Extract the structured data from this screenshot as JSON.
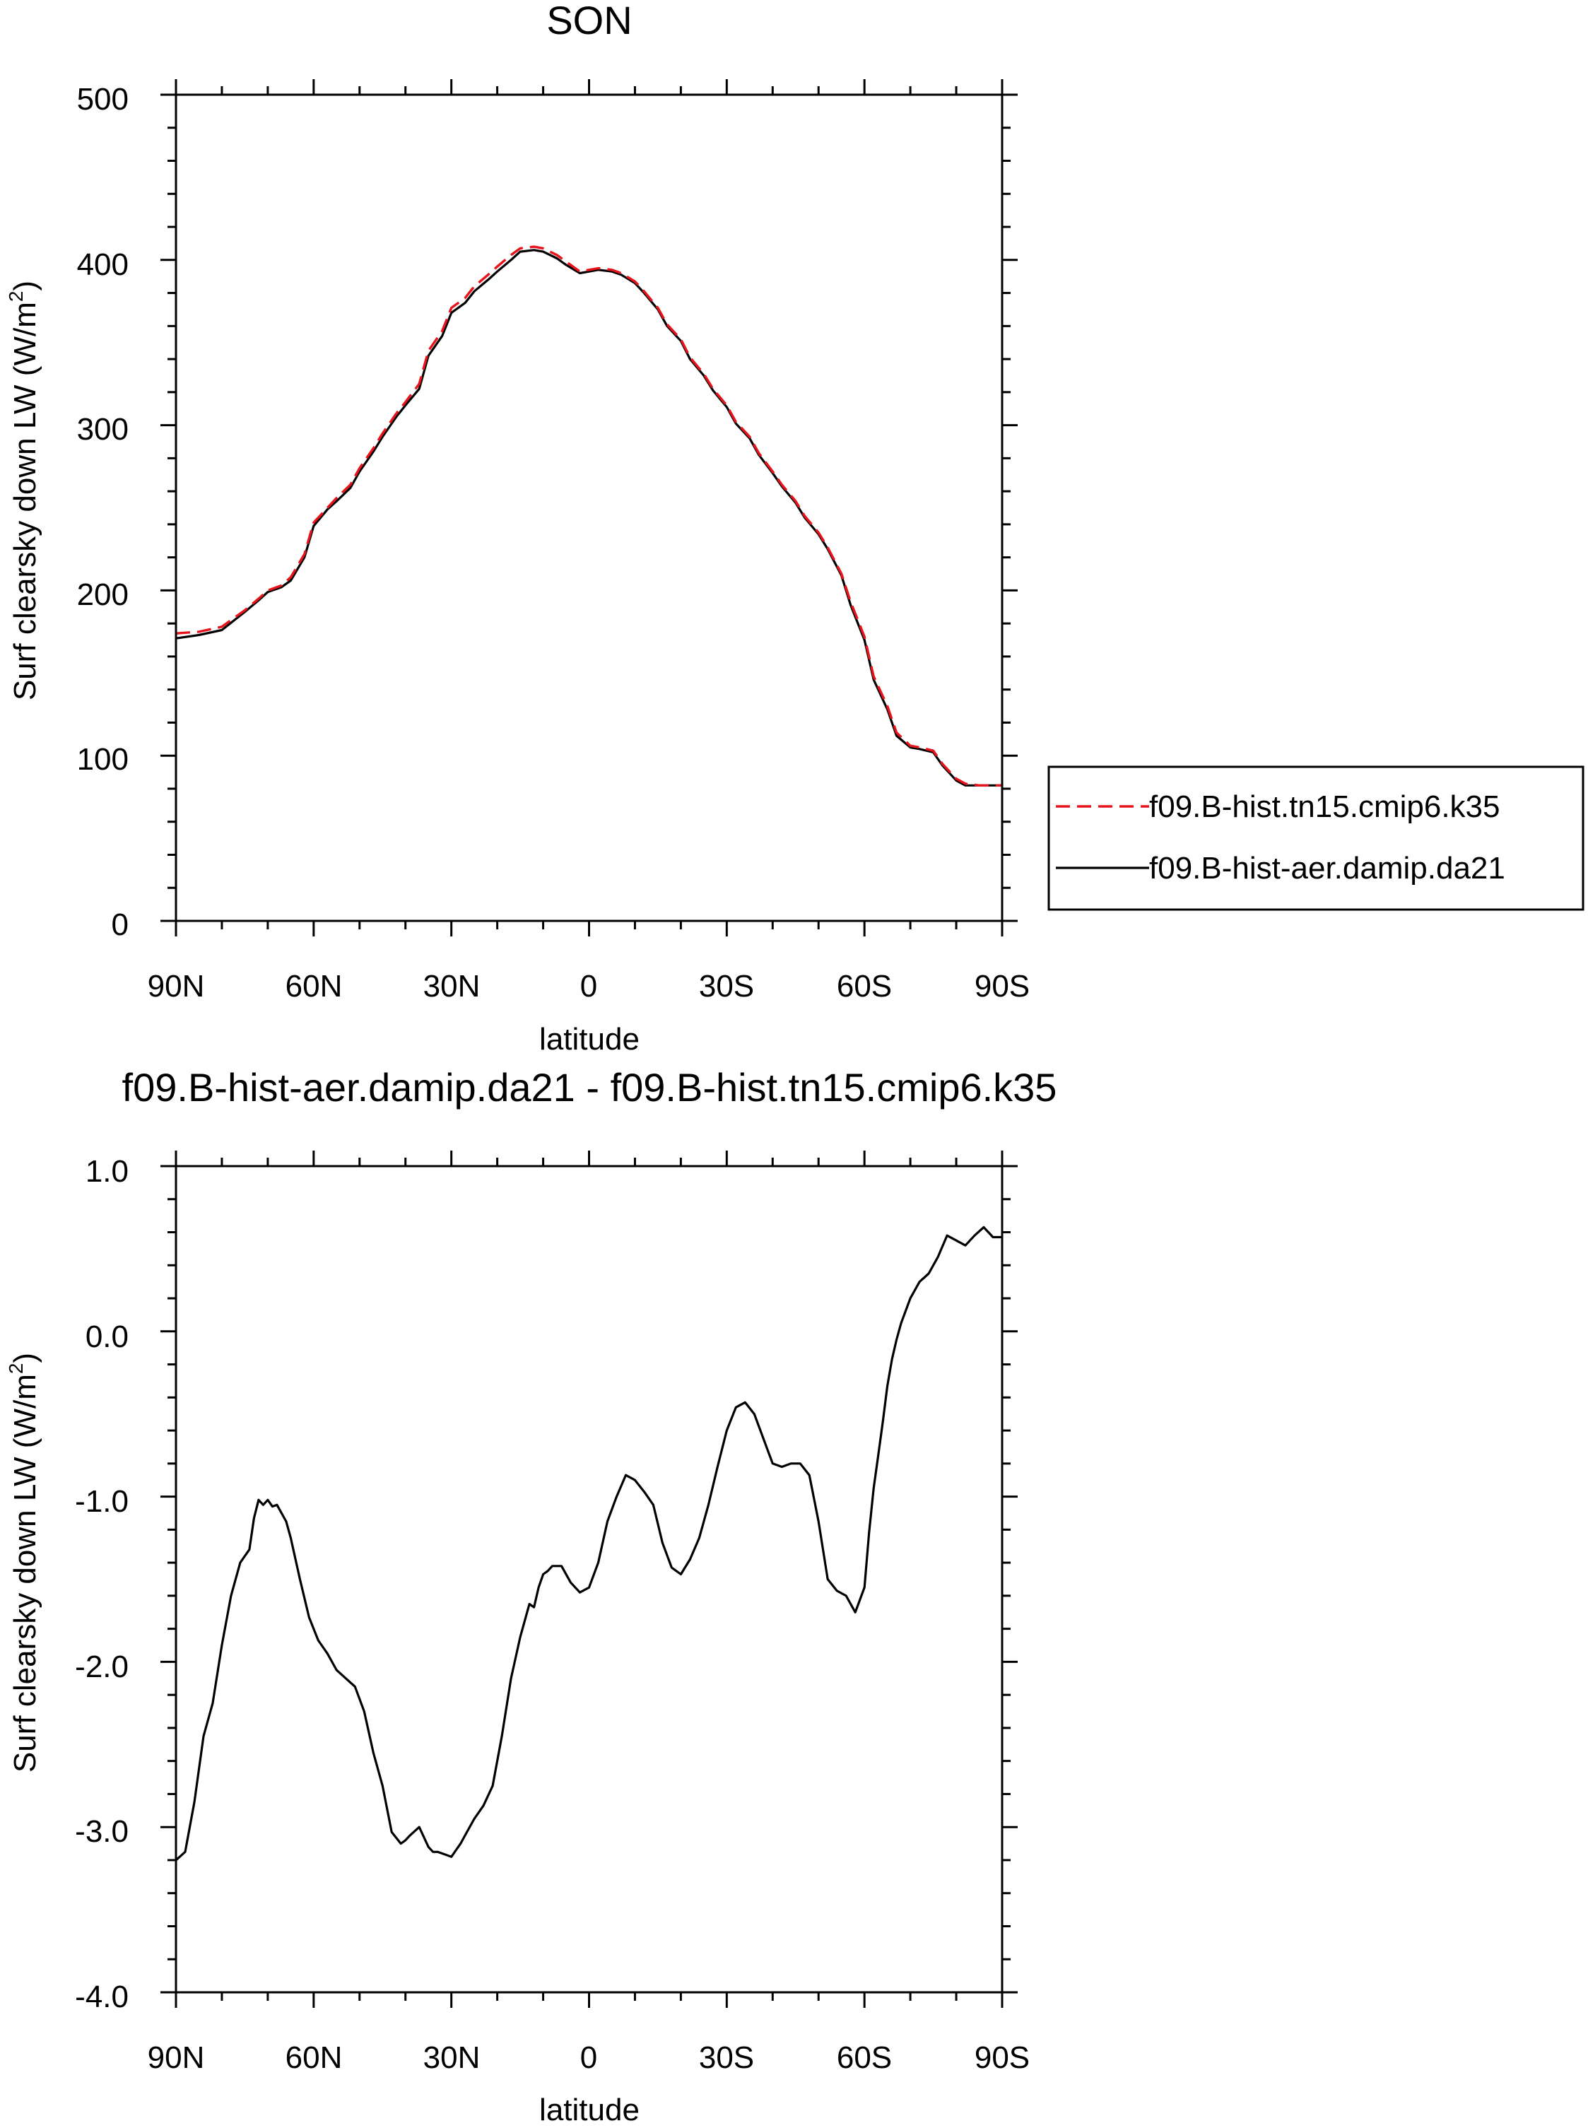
{
  "chart_data": [
    {
      "type": "line",
      "title": "SON",
      "xlabel": "latitude",
      "ylabel": "Surf clearsky down LW (W/m²)",
      "ylabel_main": "Surf clearsky down LW (W/m",
      "ylabel_sup": "2",
      "ylabel_close": ")",
      "xlim": [
        90,
        -90
      ],
      "ylim": [
        0,
        500
      ],
      "xticks": [
        90,
        60,
        30,
        0,
        -30,
        -60,
        -90
      ],
      "xtick_labels": [
        "90N",
        "60N",
        "30N",
        "0",
        "30S",
        "60S",
        "90S"
      ],
      "yticks": [
        0,
        100,
        200,
        300,
        400,
        500
      ],
      "ytick_labels": [
        "0",
        "100",
        "200",
        "300",
        "400",
        "500"
      ],
      "legend": {
        "position": "right",
        "entries": [
          "f09.B-hist.tn15.cmip6.k35",
          "f09.B-hist-aer.damip.da21"
        ]
      },
      "series": [
        {
          "name": "f09.B-hist.tn15.cmip6.k35",
          "color": "#e8141c",
          "style": "dashed",
          "x": [
            90,
            85,
            80,
            75,
            72,
            70,
            67,
            65,
            62,
            60,
            57,
            55,
            52,
            50,
            47,
            45,
            42,
            40,
            37,
            35,
            32,
            30,
            27,
            25,
            22,
            20,
            17,
            15,
            12,
            10,
            7,
            5,
            2,
            0,
            -2,
            -5,
            -7,
            -10,
            -12,
            -15,
            -17,
            -20,
            -22,
            -25,
            -27,
            -30,
            -32,
            -35,
            -37,
            -40,
            -42,
            -45,
            -47,
            -50,
            -52,
            -55,
            -57,
            -60,
            -62,
            -65,
            -67,
            -70,
            -72,
            -75,
            -77,
            -80,
            -82,
            -85,
            -87,
            -90
          ],
          "y": [
            174,
            175,
            178,
            188,
            195,
            200,
            203,
            208,
            222,
            241,
            250,
            256,
            264,
            274,
            286,
            295,
            307,
            314,
            325,
            345,
            357,
            371,
            377,
            384,
            391,
            396,
            403,
            407,
            408,
            407,
            403,
            399,
            393,
            394,
            395,
            394,
            392,
            387,
            381,
            371,
            361,
            352,
            341,
            331,
            322,
            312,
            302,
            293,
            283,
            272,
            264,
            254,
            245,
            235,
            226,
            210,
            193,
            172,
            148,
            130,
            114,
            106,
            105,
            103,
            95,
            86,
            83,
            82,
            82,
            82
          ]
        },
        {
          "name": "f09.B-hist-aer.damip.da21",
          "color": "#000000",
          "style": "solid",
          "x": [
            90,
            85,
            80,
            75,
            72,
            70,
            67,
            65,
            62,
            60,
            57,
            55,
            52,
            50,
            47,
            45,
            42,
            40,
            37,
            35,
            32,
            30,
            27,
            25,
            22,
            20,
            17,
            15,
            12,
            10,
            7,
            5,
            2,
            0,
            -2,
            -5,
            -7,
            -10,
            -12,
            -15,
            -17,
            -20,
            -22,
            -25,
            -27,
            -30,
            -32,
            -35,
            -37,
            -40,
            -42,
            -45,
            -47,
            -50,
            -52,
            -55,
            -57,
            -60,
            -62,
            -65,
            -67,
            -70,
            -72,
            -75,
            -77,
            -80,
            -82,
            -85,
            -87,
            -90
          ],
          "y": [
            171,
            173,
            176,
            187,
            194,
            199,
            202,
            206,
            220,
            239,
            249,
            254,
            262,
            272,
            284,
            293,
            305,
            312,
            322,
            342,
            354,
            368,
            374,
            381,
            388,
            393,
            400,
            405,
            406,
            405,
            401,
            397,
            392,
            393,
            394,
            393,
            391,
            386,
            380,
            370,
            360,
            351,
            340,
            330,
            321,
            311,
            301,
            292,
            282,
            271,
            263,
            253,
            244,
            234,
            225,
            209,
            191,
            170,
            146,
            128,
            112,
            105,
            104,
            102,
            94,
            85,
            82,
            82,
            82,
            82
          ]
        }
      ]
    },
    {
      "type": "line",
      "title": "f09.B-hist-aer.damip.da21 - f09.B-hist.tn15.cmip6.k35",
      "xlabel": "latitude",
      "ylabel": "Surf clearsky down LW (W/m²)",
      "ylabel_main": "Surf clearsky down LW (W/m",
      "ylabel_sup": "2",
      "ylabel_close": ")",
      "xlim": [
        90,
        -90
      ],
      "ylim": [
        -4.0,
        1.0
      ],
      "xticks": [
        90,
        60,
        30,
        0,
        -30,
        -60,
        -90
      ],
      "xtick_labels": [
        "90N",
        "60N",
        "30N",
        "0",
        "30S",
        "60S",
        "90S"
      ],
      "yticks": [
        -4.0,
        -3.0,
        -2.0,
        -1.0,
        0.0,
        1.0
      ],
      "ytick_labels": [
        "-4.0",
        "-3.0",
        "-2.0",
        "-1.0",
        "0.0",
        "1.0"
      ],
      "series": [
        {
          "name": "f09.B-hist-aer.damip.da21 - f09.B-hist.tn15.cmip6.k35",
          "color": "#000000",
          "style": "solid",
          "x": [
            90,
            88,
            86,
            84,
            82,
            80,
            78,
            76,
            74,
            73,
            72,
            71,
            70,
            69,
            68,
            67,
            66,
            65,
            63,
            61,
            59,
            57,
            55,
            53,
            51,
            49,
            47,
            45,
            43,
            41,
            40,
            39,
            37,
            35,
            34,
            33,
            31,
            30,
            29,
            28,
            27,
            25,
            23,
            21,
            19,
            17,
            15,
            13,
            12,
            11,
            10,
            9,
            8,
            6,
            4,
            2,
            0,
            -2,
            -4,
            -6,
            -8,
            -10,
            -12,
            -14,
            -16,
            -18,
            -20,
            -22,
            -24,
            -26,
            -28,
            -30,
            -32,
            -34,
            -36,
            -38,
            -40,
            -42,
            -44,
            -46,
            -48,
            -50,
            -52,
            -54,
            -56,
            -58,
            -60,
            -61,
            -62,
            -63,
            -64,
            -65,
            -66,
            -67,
            -68,
            -70,
            -72,
            -74,
            -76,
            -78,
            -80,
            -82,
            -84,
            -86,
            -88,
            -90
          ],
          "y": [
            -3.2,
            -3.15,
            -2.85,
            -2.45,
            -2.25,
            -1.9,
            -1.6,
            -1.4,
            -1.32,
            -1.13,
            -1.02,
            -1.05,
            -1.02,
            -1.06,
            -1.05,
            -1.1,
            -1.15,
            -1.25,
            -1.5,
            -1.73,
            -1.87,
            -1.95,
            -2.05,
            -2.1,
            -2.15,
            -2.3,
            -2.55,
            -2.75,
            -3.03,
            -3.1,
            -3.08,
            -3.05,
            -3.0,
            -3.12,
            -3.15,
            -3.15,
            -3.17,
            -3.18,
            -3.14,
            -3.1,
            -3.05,
            -2.95,
            -2.87,
            -2.75,
            -2.45,
            -2.1,
            -1.85,
            -1.65,
            -1.67,
            -1.55,
            -1.47,
            -1.45,
            -1.42,
            -1.42,
            -1.52,
            -1.58,
            -1.55,
            -1.4,
            -1.15,
            -1.0,
            -0.87,
            -0.9,
            -0.97,
            -1.05,
            -1.28,
            -1.43,
            -1.47,
            -1.38,
            -1.25,
            -1.05,
            -0.82,
            -0.6,
            -0.46,
            -0.43,
            -0.5,
            -0.65,
            -0.8,
            -0.82,
            -0.8,
            -0.8,
            -0.87,
            -1.15,
            -1.5,
            -1.57,
            -1.6,
            -1.7,
            -1.55,
            -1.22,
            -0.95,
            -0.75,
            -0.55,
            -0.33,
            -0.17,
            -0.05,
            0.05,
            0.2,
            0.3,
            0.35,
            0.45,
            0.58,
            0.55,
            0.52,
            0.58,
            0.63,
            0.57,
            0.57
          ]
        }
      ]
    }
  ]
}
